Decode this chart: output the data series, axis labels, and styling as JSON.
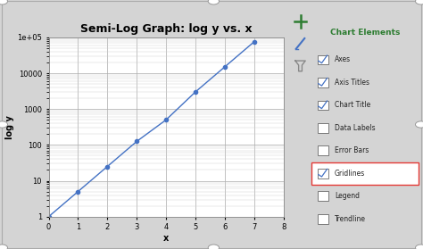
{
  "title": "Semi-Log Graph: log y vs. x",
  "xlabel": "x",
  "ylabel": "log y",
  "x_data": [
    0,
    1,
    2,
    3,
    4,
    5,
    6,
    7
  ],
  "y_data": [
    1,
    5,
    25,
    125,
    500,
    3000,
    15000,
    75000
  ],
  "xlim": [
    0,
    8
  ],
  "ylim_log": [
    1,
    100000
  ],
  "line_color": "#4472C4",
  "marker": "o",
  "marker_size": 3,
  "plot_bg": "#FFFFFF",
  "grid_major_color": "#AAAAAA",
  "grid_minor_color": "#CCCCCC",
  "title_fontsize": 9,
  "label_fontsize": 7,
  "tick_fontsize": 6,
  "chart_elements_title": "Chart Elements",
  "chart_elements": [
    {
      "name": "Axes",
      "checked": true
    },
    {
      "name": "Axis Titles",
      "checked": true
    },
    {
      "name": "Chart Title",
      "checked": true
    },
    {
      "name": "Data Labels",
      "checked": false
    },
    {
      "name": "Error Bars",
      "checked": false
    },
    {
      "name": "Gridlines",
      "checked": true,
      "highlighted": true
    },
    {
      "name": "Legend",
      "checked": false
    },
    {
      "name": "Trendline",
      "checked": false
    }
  ],
  "outer_bg": "#D4D4D4",
  "panel_bg": "#F5F5F5",
  "handle_color": "#FFFFFF",
  "handle_edge": "#999999"
}
